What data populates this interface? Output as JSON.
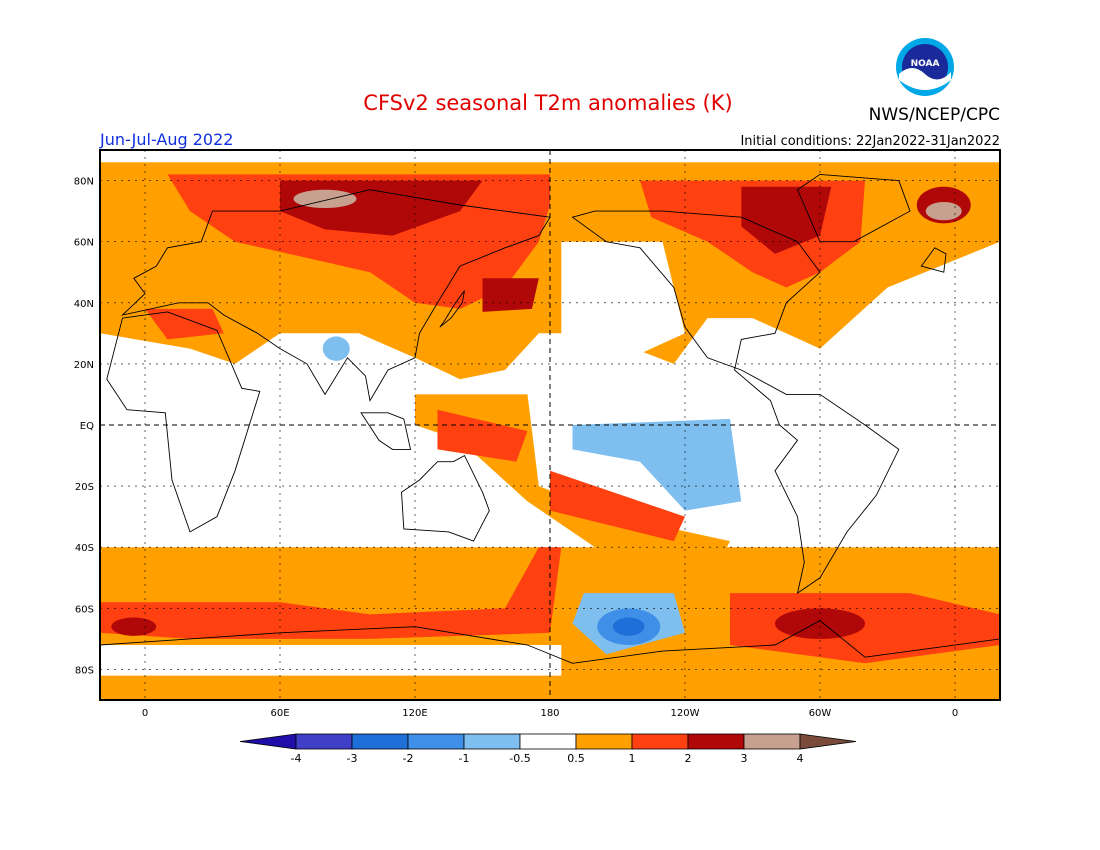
{
  "title": "CFSv2 seasonal T2m anomalies (K)",
  "agency": "NWS/NCEP/CPC",
  "logo_text": "NOAA",
  "period": "Jun-Jul-Aug 2022",
  "initial_conditions": "Initial conditions: 22Jan2022-31Jan2022",
  "lat_labels": [
    "80N",
    "60N",
    "40N",
    "20N",
    "EQ",
    "20S",
    "40S",
    "60S",
    "80S"
  ],
  "lat_values": [
    80,
    60,
    40,
    20,
    0,
    -20,
    -40,
    -60,
    -80
  ],
  "lon_labels": [
    "0",
    "60E",
    "120E",
    "180",
    "120W",
    "60W",
    "0"
  ],
  "lon_values": [
    0,
    60,
    120,
    180,
    240,
    300,
    360
  ],
  "colorbar": {
    "labels": [
      "-4",
      "-3",
      "-2",
      "-1",
      "-0.5",
      "0.5",
      "1",
      "2",
      "3",
      "4"
    ],
    "colors": [
      "#1f0fa8",
      "#3f3fc8",
      "#1f6fd8",
      "#3f8fe8",
      "#7fbff0",
      "#ffffff",
      "#ffa000",
      "#ff4010",
      "#b00808",
      "#c8a090",
      "#7a4a3a"
    ]
  },
  "map_colors": {
    "ocean_pos_weak": "#ffa000",
    "pos_moderate": "#ff4010",
    "pos_strong": "#b00808",
    "pos_extreme": "#c8a090",
    "neg_weak": "#7fbff0",
    "neg_moderate": "#3f8fe8",
    "neg_strong": "#1f6fd8",
    "neg_extreme": "#3f3fc8",
    "neutral": "#ffffff"
  }
}
